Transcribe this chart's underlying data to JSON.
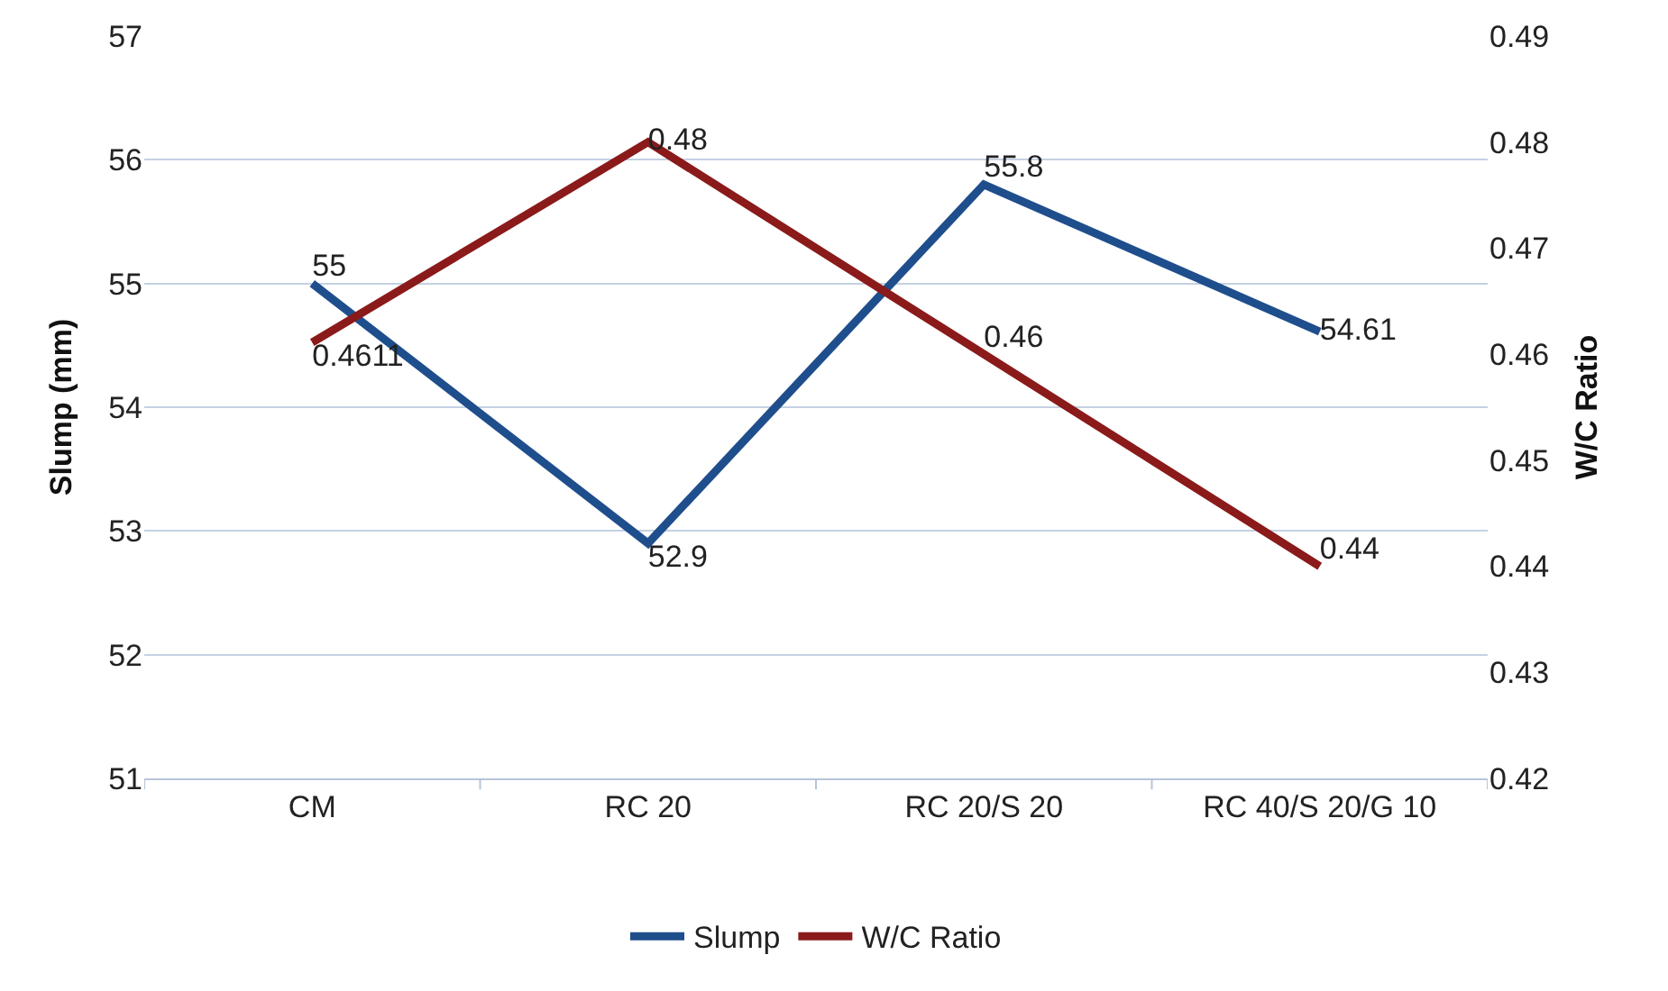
{
  "chart_data": {
    "type": "line",
    "categories": [
      "CM",
      "RC 20",
      "RC 20/S 20",
      "RC 40/S 20/G 10"
    ],
    "series": [
      {
        "name": "Slump",
        "color": "#1f4e8c",
        "values": [
          55,
          52.9,
          55.8,
          54.61
        ]
      },
      {
        "name": "W/C Ratio",
        "color": "#8b1a1a",
        "values": [
          0.4611,
          0.48,
          0.46,
          0.44
        ],
        "axis": "y2"
      }
    ],
    "ylabel": "Slump (mm)",
    "y2label": "W/C Ratio",
    "ylim": [
      51,
      57
    ],
    "yticks": [
      51,
      52,
      53,
      54,
      55,
      56,
      57
    ],
    "y2lim": [
      0.42,
      0.49
    ],
    "y2ticks": [
      {
        "value": 0.42,
        "label": "0.42"
      },
      {
        "value": 0.43,
        "label": "0.43"
      },
      {
        "value": 0.44,
        "label": "0.44"
      },
      {
        "value": 0.45,
        "label": "0.45"
      },
      {
        "value": 0.46,
        "label": "0.46"
      },
      {
        "value": 0.47,
        "label": "0.47"
      },
      {
        "value": 0.48,
        "label": "0.48"
      },
      {
        "value": 0.49,
        "label": "0.49"
      }
    ],
    "data_labels": true,
    "grid": "y",
    "legend": "bottom",
    "marker": "none",
    "line_style": "solid"
  }
}
